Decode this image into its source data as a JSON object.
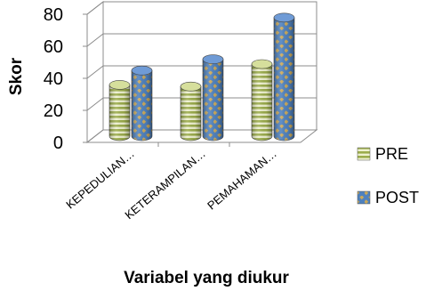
{
  "chart_data": {
    "type": "bar",
    "variant": "3d-cylinder-clustered",
    "categories": [
      "KEPEDULIAN…",
      "KETERAMPILAN…",
      "PEMAHAMAN…"
    ],
    "series": [
      {
        "name": "PRE",
        "values": [
          32,
          31,
          45
        ],
        "color": "#b9c96a",
        "pattern": "horizontal-stripes"
      },
      {
        "name": "POST",
        "values": [
          41,
          48,
          74
        ],
        "color": "#4f81bd",
        "pattern": "diamond-dots"
      }
    ],
    "ylabel": "Skor",
    "xlabel": "Variabel yang diukur",
    "ylim": [
      0,
      80
    ],
    "yticks": [
      0,
      20,
      40,
      60,
      80
    ],
    "grid": true,
    "legend_position": "right"
  }
}
